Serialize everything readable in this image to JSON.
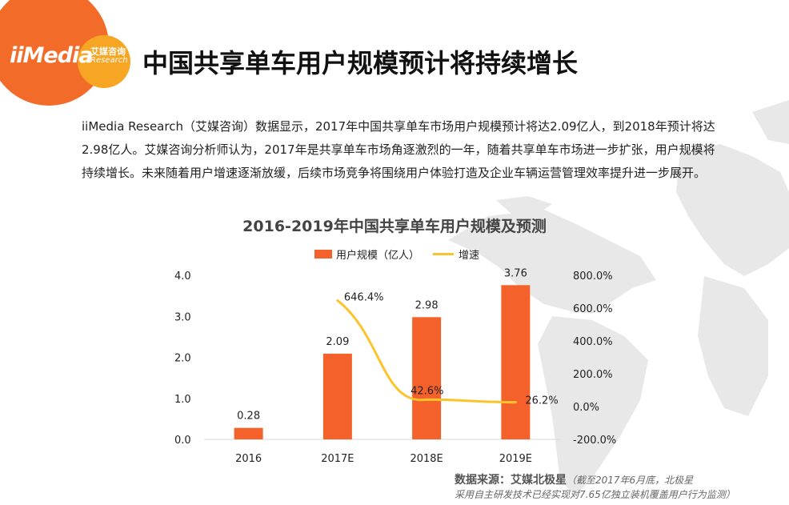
{
  "header": {
    "logo": {
      "brand": "iiMedia",
      "cn": "艾媒咨询",
      "en": "Research"
    },
    "title": "中国共享单车用户规模预计将持续增长"
  },
  "intro": {
    "paragraph": "iiMedia Research（艾媒咨询）数据显示，2017年中国共享单车市场用户规模预计将达2.09亿人，到2018年预计将达2.98亿人。艾媒咨询分析师认为，2017年是共享单车市场角逐激烈的一年，随着共享单车市场进一步扩张，用户规模将持续增长。未来随着用户增速逐渐放缓，后续市场竞争将围绕用户体验打造及企业车辆运营管理效率提升进一步展开。"
  },
  "chart_data": {
    "type": "bar",
    "title": "2016-2019年中国共享单车用户规模及预测",
    "categories": [
      "2016",
      "2017E",
      "2018E",
      "2019E"
    ],
    "series": [
      {
        "name": "用户规模（亿人）",
        "type": "bar",
        "axis": "left",
        "values": [
          0.28,
          2.09,
          2.98,
          3.76
        ],
        "labels": [
          "0.28",
          "2.09",
          "2.98",
          "3.76"
        ],
        "color": "#f4612b"
      },
      {
        "name": "增速",
        "type": "line",
        "axis": "right",
        "values": [
          null,
          646.4,
          42.6,
          26.2
        ],
        "labels": [
          "",
          "646.4%",
          "42.6%",
          "26.2%"
        ],
        "color": "#fcc42c"
      }
    ],
    "y_left": {
      "ylim": [
        0,
        4.0
      ],
      "ticks": [
        "0.0",
        "1.0",
        "2.0",
        "3.0",
        "4.0"
      ]
    },
    "y_right": {
      "ylim": [
        -200,
        800
      ],
      "ticks": [
        "-200.0%",
        "0.0%",
        "200.0%",
        "400.0%",
        "600.0%",
        "800.0%"
      ]
    },
    "xlabel": "",
    "ylabel": "",
    "legend_position": "top-center",
    "grid": false
  },
  "source": {
    "label": "数据来源：艾媒北极星",
    "note_line1": "（截至2017年6月底，北极星",
    "note_line2": "采用自主研发技术已经实现对7.65亿独立装机覆盖用户行为监测）"
  },
  "colors": {
    "accent": "#f36b29",
    "accent2": "#f6a623",
    "bar": "#f4612b",
    "line": "#fcc42c",
    "map": "#e6e6e6"
  }
}
